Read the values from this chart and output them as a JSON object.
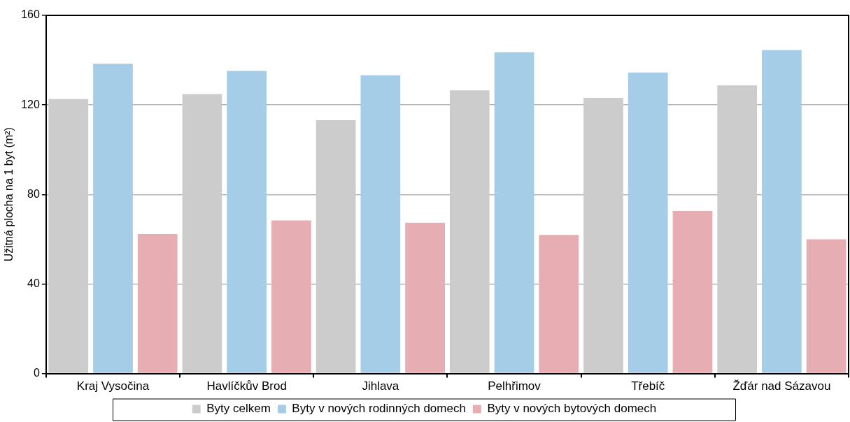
{
  "chart_data": {
    "type": "bar",
    "ylabel": "Užitná plocha na 1 byt (m²)",
    "categories": [
      "Kraj Vysočina",
      "Havlíčkův Brod",
      "Jihlava",
      "Pelhřimov",
      "Třebíč",
      "Žďár nad Sázavou"
    ],
    "series": [
      {
        "name": "Byty celkem",
        "color": "#cccccc",
        "values": [
          122.6,
          124.8,
          113.2,
          126.5,
          123.2,
          128.7
        ]
      },
      {
        "name": "Byty v nových rodinných domech",
        "color": "#a6cde8",
        "values": [
          138.4,
          135.2,
          133.2,
          143.5,
          134.5,
          144.5
        ]
      },
      {
        "name": "Byty v nových bytových domech",
        "color": "#e6aeb2",
        "values": [
          62.3,
          68.4,
          67.4,
          61.9,
          72.6,
          60.0
        ]
      }
    ],
    "ylim": [
      0,
      160
    ],
    "yticks": [
      0,
      40,
      80,
      120,
      160
    ],
    "grid": "y",
    "legend": "bottom"
  }
}
